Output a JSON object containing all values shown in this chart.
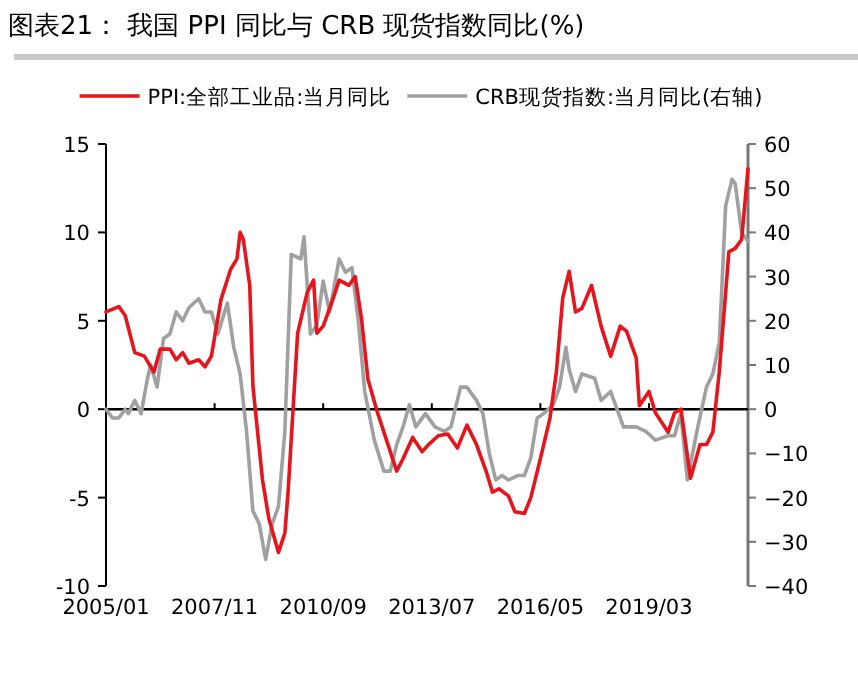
{
  "chart_data": {
    "type": "line",
    "title": "图表21： 我国 PPI 同比与 CRB 现货指数同比(%)",
    "legend": "top",
    "xlim": [
      "2005-01",
      "2021-10"
    ],
    "xticks": [
      {
        "value": "2005-01",
        "label": "2005/01"
      },
      {
        "value": "2007-11",
        "label": "2007/11"
      },
      {
        "value": "2010-09",
        "label": "2010/09"
      },
      {
        "value": "2013-07",
        "label": "2013/07"
      },
      {
        "value": "2016-05",
        "label": "2016/05"
      },
      {
        "value": "2019-03",
        "label": "2019/03"
      }
    ],
    "ylim": [
      -10,
      15
    ],
    "yticks": [
      -10,
      -5,
      0,
      5,
      10,
      15
    ],
    "y2lim": [
      -40,
      60
    ],
    "y2ticks": [
      -40,
      -30,
      -20,
      -10,
      0,
      10,
      20,
      30,
      40,
      50,
      60
    ],
    "series": [
      {
        "name": "PPI:全部工业品:当月同比",
        "color": "#e8141c",
        "x": [
          "2005-01",
          "2005-05",
          "2005-07",
          "2005-10",
          "2006-01",
          "2006-04",
          "2006-06",
          "2006-09",
          "2006-11",
          "2007-01",
          "2007-03",
          "2007-06",
          "2007-08",
          "2007-10",
          "2008-01",
          "2008-04",
          "2008-06",
          "2008-07",
          "2008-08",
          "2008-10",
          "2008-11",
          "2009-02",
          "2009-04",
          "2009-07",
          "2009-09",
          "2009-10",
          "2010-01",
          "2010-04",
          "2010-06",
          "2010-07",
          "2010-09",
          "2010-12",
          "2011-02",
          "2011-05",
          "2011-07",
          "2011-09",
          "2011-11",
          "2012-02",
          "2012-04",
          "2012-08",
          "2012-10",
          "2013-01",
          "2013-04",
          "2013-06",
          "2013-09",
          "2013-12",
          "2014-03",
          "2014-06",
          "2014-09",
          "2014-12",
          "2015-02",
          "2015-04",
          "2015-07",
          "2015-09",
          "2015-12",
          "2016-02",
          "2016-05",
          "2016-08",
          "2016-10",
          "2016-12",
          "2017-02",
          "2017-04",
          "2017-06",
          "2017-09",
          "2017-12",
          "2018-03",
          "2018-06",
          "2018-08",
          "2018-11",
          "2018-12",
          "2019-03",
          "2019-05",
          "2019-09",
          "2019-11",
          "2020-01",
          "2020-04",
          "2020-07",
          "2020-09",
          "2020-11",
          "2021-01",
          "2021-03",
          "2021-04",
          "2021-06",
          "2021-08",
          "2021-10"
        ],
        "values": [
          5.5,
          5.8,
          5.3,
          3.2,
          3.0,
          2.1,
          3.4,
          3.4,
          2.8,
          3.2,
          2.6,
          2.8,
          2.4,
          3.0,
          6.2,
          7.9,
          8.5,
          10.0,
          9.6,
          7.0,
          1.3,
          -4.0,
          -6.2,
          -8.1,
          -7.0,
          -4.7,
          4.3,
          6.6,
          7.3,
          4.3,
          4.7,
          6.2,
          7.3,
          7.0,
          7.5,
          5.1,
          1.7,
          -0.2,
          -1.3,
          -3.5,
          -2.8,
          -1.6,
          -2.4,
          -2.0,
          -1.5,
          -1.4,
          -2.2,
          -0.9,
          -2.0,
          -3.5,
          -4.7,
          -4.5,
          -4.9,
          -5.8,
          -5.9,
          -5.0,
          -2.8,
          -0.5,
          2.1,
          6.3,
          7.8,
          5.5,
          5.7,
          7.0,
          4.7,
          3.0,
          4.7,
          4.4,
          2.9,
          0.2,
          1.0,
          -0.2,
          -1.3,
          -0.2,
          0.0,
          -3.9,
          -2.0,
          -2.0,
          -1.3,
          2.1,
          6.6,
          8.9,
          9.1,
          9.6,
          13.6
        ]
      },
      {
        "name": "CRB现货指数:当月同比(右轴)",
        "color": "#a0a0a0",
        "axis": "y2",
        "x": [
          "2005-01",
          "2005-03",
          "2005-05",
          "2005-07",
          "2005-08",
          "2005-10",
          "2005-12",
          "2006-02",
          "2006-03",
          "2006-05",
          "2006-07",
          "2006-09",
          "2006-11",
          "2007-01",
          "2007-03",
          "2007-06",
          "2007-08",
          "2007-10",
          "2007-12",
          "2008-03",
          "2008-05",
          "2008-07",
          "2008-09",
          "2008-11",
          "2009-01",
          "2009-03",
          "2009-05",
          "2009-07",
          "2009-09",
          "2009-11",
          "2010-02",
          "2010-03",
          "2010-05",
          "2010-07",
          "2010-09",
          "2010-11",
          "2011-02",
          "2011-04",
          "2011-06",
          "2011-08",
          "2011-10",
          "2012-01",
          "2012-04",
          "2012-06",
          "2012-08",
          "2012-10",
          "2012-12",
          "2013-02",
          "2013-05",
          "2013-08",
          "2013-11",
          "2014-01",
          "2014-04",
          "2014-06",
          "2014-09",
          "2014-11",
          "2015-01",
          "2015-03",
          "2015-05",
          "2015-07",
          "2015-10",
          "2015-12",
          "2016-02",
          "2016-04",
          "2016-06",
          "2016-09",
          "2016-11",
          "2017-01",
          "2017-02",
          "2017-04",
          "2017-06",
          "2017-10",
          "2017-12",
          "2018-03",
          "2018-05",
          "2018-07",
          "2018-09",
          "2018-11",
          "2019-02",
          "2019-05",
          "2019-09",
          "2019-11",
          "2020-01",
          "2020-03",
          "2020-06",
          "2020-09",
          "2020-11",
          "2021-01",
          "2021-03",
          "2021-05",
          "2021-06",
          "2021-08",
          "2021-10"
        ],
        "values": [
          0,
          -2,
          -2,
          0,
          -1,
          2,
          -1,
          7,
          10,
          5,
          16,
          17,
          22,
          20,
          23,
          25,
          22,
          22,
          17,
          24,
          14,
          8,
          -5,
          -23,
          -26,
          -34,
          -26,
          -22,
          -5,
          35,
          34,
          39,
          17,
          19,
          29,
          22,
          34,
          31,
          32,
          20,
          4,
          -7,
          -14,
          -14,
          -8,
          -4,
          1,
          -4,
          -1,
          -4,
          -5,
          -4,
          5,
          5,
          2,
          -1,
          -10,
          -16,
          -15,
          -16,
          -15,
          -15,
          -11,
          -2,
          -1,
          1,
          5,
          14,
          9,
          4,
          8,
          7,
          2,
          4,
          0,
          -4,
          -4,
          -4,
          -5,
          -7,
          -6,
          -6,
          -1,
          -16,
          -5,
          5,
          8,
          15,
          46,
          52,
          51,
          40,
          38
        ]
      }
    ]
  }
}
